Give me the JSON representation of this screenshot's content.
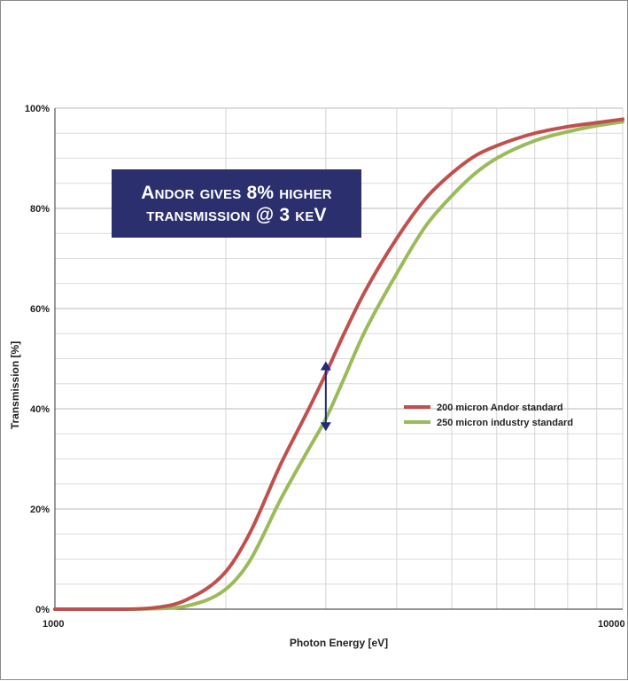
{
  "chart_data": {
    "type": "line",
    "xscale": "log",
    "xlim": [
      1000,
      10000
    ],
    "ylim": [
      0,
      100
    ],
    "xlabel": "Photon Energy [eV]",
    "ylabel": "Transmission [%]",
    "x_tick_labels": [
      "1000",
      "10000"
    ],
    "y_ticks": [
      0,
      20,
      40,
      60,
      80,
      100
    ],
    "y_tick_labels": [
      "0%",
      "20%",
      "40%",
      "60%",
      "80%",
      "100%"
    ],
    "grid": true,
    "legend_position": "center-right",
    "x": [
      1000,
      1300,
      1500,
      1700,
      2000,
      2200,
      2500,
      2800,
      3000,
      3200,
      3500,
      4000,
      4500,
      5000,
      5500,
      6000,
      7000,
      8000,
      9000,
      10000
    ],
    "series": [
      {
        "name": "200 micron Andor standard",
        "color": "#c0504d",
        "values": [
          0,
          0,
          0.3,
          1.8,
          7.5,
          15,
          29,
          40,
          47,
          54,
          63,
          74,
          82,
          87,
          90.5,
          92.5,
          95,
          96.3,
          97.1,
          97.8
        ]
      },
      {
        "name": "250 micron industry standard",
        "color": "#9bbb59",
        "values": [
          0,
          0,
          0.1,
          0.6,
          4,
          9.5,
          22,
          32,
          38,
          45,
          55,
          67,
          76.5,
          82.5,
          87,
          90,
          93.5,
          95.3,
          96.5,
          97.3
        ]
      }
    ],
    "annotation": {
      "lines": [
        "Andor gives 8% higher",
        "transmission @ 3 keV"
      ],
      "arrow_x": 3000,
      "arrow_from": 47,
      "arrow_to": 38,
      "box_color": "#2b2f6e",
      "arrow_color": "#1f2a7a"
    }
  }
}
